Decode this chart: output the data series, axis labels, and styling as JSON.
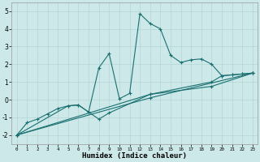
{
  "xlabel": "Humidex (Indice chaleur)",
  "xlim": [
    -0.5,
    23.5
  ],
  "ylim": [
    -2.5,
    5.5
  ],
  "xticks": [
    0,
    1,
    2,
    3,
    4,
    5,
    6,
    7,
    8,
    9,
    10,
    11,
    12,
    13,
    14,
    15,
    16,
    17,
    18,
    19,
    20,
    21,
    22,
    23
  ],
  "yticks": [
    -2,
    -1,
    0,
    1,
    2,
    3,
    4,
    5
  ],
  "bg_color": "#cce8e8",
  "grid_color": "#b8d8d8",
  "line_color": "#1a7070",
  "line1_x": [
    0,
    1,
    2,
    3,
    4,
    5,
    6,
    7,
    8,
    9,
    10,
    11,
    12,
    13,
    14,
    15,
    16,
    17,
    18,
    19,
    20,
    21,
    22,
    23
  ],
  "line1_y": [
    -2.0,
    -1.3,
    -1.1,
    -0.8,
    -0.5,
    -0.35,
    -0.3,
    -0.7,
    1.8,
    2.6,
    0.05,
    0.35,
    4.85,
    4.3,
    4.0,
    2.5,
    2.1,
    2.25,
    2.3,
    2.0,
    1.35,
    1.4,
    1.45,
    1.5
  ],
  "line2_x": [
    0,
    5,
    6,
    7,
    8,
    9,
    13,
    19,
    20,
    21,
    22,
    23
  ],
  "line2_y": [
    -2.0,
    -0.35,
    -0.3,
    -0.7,
    -1.1,
    -0.75,
    0.3,
    1.0,
    1.35,
    1.4,
    1.45,
    1.5
  ],
  "line3_x": [
    0,
    13,
    19,
    23
  ],
  "line3_y": [
    -2.0,
    0.3,
    0.75,
    1.5
  ],
  "line4_x": [
    0,
    13,
    23
  ],
  "line4_y": [
    -2.0,
    0.1,
    1.5
  ]
}
